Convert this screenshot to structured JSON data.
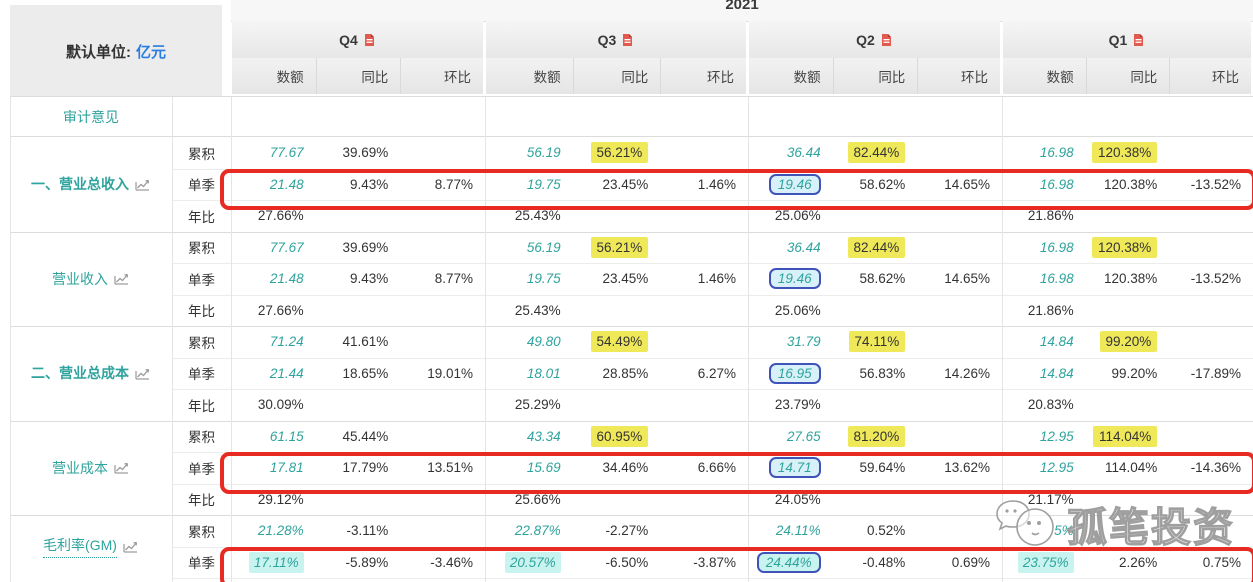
{
  "year": "2021",
  "unit": {
    "label": "默认单位:",
    "value": "亿元"
  },
  "col_headers": [
    "数额",
    "同比",
    "环比"
  ],
  "quarters": [
    {
      "label": "Q4",
      "icon": "pdf-export-icon"
    },
    {
      "label": "Q3",
      "icon": "pdf-export-icon"
    },
    {
      "label": "Q2",
      "icon": "pdf-export-icon"
    },
    {
      "label": "Q1",
      "icon": "pdf-export-icon"
    }
  ],
  "audit_row": {
    "label": "审计意见",
    "cells": [
      "",
      "",
      "",
      ""
    ]
  },
  "row_type_labels": {
    "cumulative": "累积",
    "single_quarter": "单季",
    "annual_ratio": "年比"
  },
  "groups": [
    {
      "label": "一、营业总收入",
      "bold": true,
      "icon": "trend-chart-icon",
      "rows": [
        {
          "label": "累积",
          "cells": [
            {
              "amount": "77.67",
              "yoy": "39.69%",
              "qoq": ""
            },
            {
              "amount": "56.19",
              "yoy": "56.21%",
              "qoq": "",
              "yoy_highlight": "yellow"
            },
            {
              "amount": "36.44",
              "yoy": "82.44%",
              "qoq": "",
              "yoy_highlight": "yellow"
            },
            {
              "amount": "16.98",
              "yoy": "120.38%",
              "qoq": "",
              "yoy_highlight": "yellow"
            }
          ]
        },
        {
          "label": "单季",
          "annotated_red_box": true,
          "cells": [
            {
              "amount": "21.48",
              "yoy": "9.43%",
              "qoq": "8.77%"
            },
            {
              "amount": "19.75",
              "yoy": "23.45%",
              "qoq": "1.46%"
            },
            {
              "amount": "19.46",
              "yoy": "58.62%",
              "qoq": "14.65%",
              "amount_highlight": "bluebox"
            },
            {
              "amount": "16.98",
              "yoy": "120.38%",
              "qoq": "-13.52%"
            }
          ]
        },
        {
          "label": "年比",
          "cells": [
            {
              "amount": "27.66%"
            },
            {
              "amount": "25.43%"
            },
            {
              "amount": "25.06%"
            },
            {
              "amount": "21.86%"
            }
          ]
        }
      ]
    },
    {
      "label": "营业收入",
      "bold": false,
      "icon": "trend-chart-icon",
      "rows": [
        {
          "label": "累积",
          "cells": [
            {
              "amount": "77.67",
              "yoy": "39.69%",
              "qoq": ""
            },
            {
              "amount": "56.19",
              "yoy": "56.21%",
              "qoq": "",
              "yoy_highlight": "yellow"
            },
            {
              "amount": "36.44",
              "yoy": "82.44%",
              "qoq": "",
              "yoy_highlight": "yellow"
            },
            {
              "amount": "16.98",
              "yoy": "120.38%",
              "qoq": "",
              "yoy_highlight": "yellow"
            }
          ]
        },
        {
          "label": "单季",
          "cells": [
            {
              "amount": "21.48",
              "yoy": "9.43%",
              "qoq": "8.77%"
            },
            {
              "amount": "19.75",
              "yoy": "23.45%",
              "qoq": "1.46%"
            },
            {
              "amount": "19.46",
              "yoy": "58.62%",
              "qoq": "14.65%",
              "amount_highlight": "bluebox"
            },
            {
              "amount": "16.98",
              "yoy": "120.38%",
              "qoq": "-13.52%"
            }
          ]
        },
        {
          "label": "年比",
          "cells": [
            {
              "amount": "27.66%"
            },
            {
              "amount": "25.43%"
            },
            {
              "amount": "25.06%"
            },
            {
              "amount": "21.86%"
            }
          ]
        }
      ]
    },
    {
      "label": "二、营业总成本",
      "bold": true,
      "icon": "trend-chart-icon",
      "rows": [
        {
          "label": "累积",
          "cells": [
            {
              "amount": "71.24",
              "yoy": "41.61%",
              "qoq": ""
            },
            {
              "amount": "49.80",
              "yoy": "54.49%",
              "qoq": "",
              "yoy_highlight": "yellow"
            },
            {
              "amount": "31.79",
              "yoy": "74.11%",
              "qoq": "",
              "yoy_highlight": "yellow"
            },
            {
              "amount": "14.84",
              "yoy": "99.20%",
              "qoq": "",
              "yoy_highlight": "yellow"
            }
          ]
        },
        {
          "label": "单季",
          "cells": [
            {
              "amount": "21.44",
              "yoy": "18.65%",
              "qoq": "19.01%"
            },
            {
              "amount": "18.01",
              "yoy": "28.85%",
              "qoq": "6.27%"
            },
            {
              "amount": "16.95",
              "yoy": "56.83%",
              "qoq": "14.26%",
              "amount_highlight": "bluebox"
            },
            {
              "amount": "14.84",
              "yoy": "99.20%",
              "qoq": "-17.89%"
            }
          ]
        },
        {
          "label": "年比",
          "cells": [
            {
              "amount": "30.09%"
            },
            {
              "amount": "25.29%"
            },
            {
              "amount": "23.79%"
            },
            {
              "amount": "20.83%"
            }
          ]
        }
      ]
    },
    {
      "label": "营业成本",
      "bold": false,
      "icon": "trend-chart-icon",
      "rows": [
        {
          "label": "累积",
          "cells": [
            {
              "amount": "61.15",
              "yoy": "45.44%",
              "qoq": ""
            },
            {
              "amount": "43.34",
              "yoy": "60.95%",
              "qoq": "",
              "yoy_highlight": "yellow"
            },
            {
              "amount": "27.65",
              "yoy": "81.20%",
              "qoq": "",
              "yoy_highlight": "yellow"
            },
            {
              "amount": "12.95",
              "yoy": "114.04%",
              "qoq": "",
              "yoy_highlight": "yellow"
            }
          ]
        },
        {
          "label": "单季",
          "annotated_red_box": true,
          "cells": [
            {
              "amount": "17.81",
              "yoy": "17.79%",
              "qoq": "13.51%"
            },
            {
              "amount": "15.69",
              "yoy": "34.46%",
              "qoq": "6.66%"
            },
            {
              "amount": "14.71",
              "yoy": "59.64%",
              "qoq": "13.62%",
              "amount_highlight": "bluebox"
            },
            {
              "amount": "12.95",
              "yoy": "114.04%",
              "qoq": "-14.36%"
            }
          ]
        },
        {
          "label": "年比",
          "cells": [
            {
              "amount": "29.12%"
            },
            {
              "amount": "25.66%"
            },
            {
              "amount": "24.05%"
            },
            {
              "amount": "21.17%"
            }
          ]
        }
      ]
    },
    {
      "label": "毛利率(GM)",
      "bold": false,
      "dotted_underline": true,
      "icon": "trend-chart-icon",
      "rows": [
        {
          "label": "累积",
          "teal_amount": true,
          "cells": [
            {
              "amount": "21.28%",
              "yoy": "-3.11%",
              "qoq": ""
            },
            {
              "amount": "22.87%",
              "yoy": "-2.27%",
              "qoq": ""
            },
            {
              "amount": "24.11%",
              "yoy": "0.52%",
              "qoq": ""
            },
            {
              "amount": "5%",
              "yoy": "",
              "qoq": "",
              "partially_obscured_by_watermark": true
            }
          ]
        },
        {
          "label": "单季",
          "annotated_red_box": true,
          "teal_amount": true,
          "cells": [
            {
              "amount": "17.11%",
              "yoy": "-5.89%",
              "qoq": "-3.46%",
              "amount_highlight": "cyan"
            },
            {
              "amount": "20.57%",
              "yoy": "-6.50%",
              "qoq": "-3.87%",
              "amount_highlight": "cyan"
            },
            {
              "amount": "24.44%",
              "yoy": "-0.48%",
              "qoq": "0.69%",
              "amount_highlight": "cyan-bluebox"
            },
            {
              "amount": "23.75%",
              "yoy": "2.26%",
              "qoq": "0.75%",
              "amount_highlight": "cyan"
            }
          ]
        }
      ]
    }
  ],
  "watermark": {
    "text": "孤笔投资",
    "icon": "chick-chat-bubbles-logo"
  },
  "colors": {
    "accent_teal": "#2fa39d",
    "link_blue": "#2a7de1",
    "highlight_yellow": "#efe95a",
    "highlight_cyan": "#c8f3ef",
    "selection_box_border": "#4053b8",
    "selection_box_fill": "#d8f1f8",
    "annotation_red": "#e82b22",
    "header_gray": "#ececec"
  }
}
